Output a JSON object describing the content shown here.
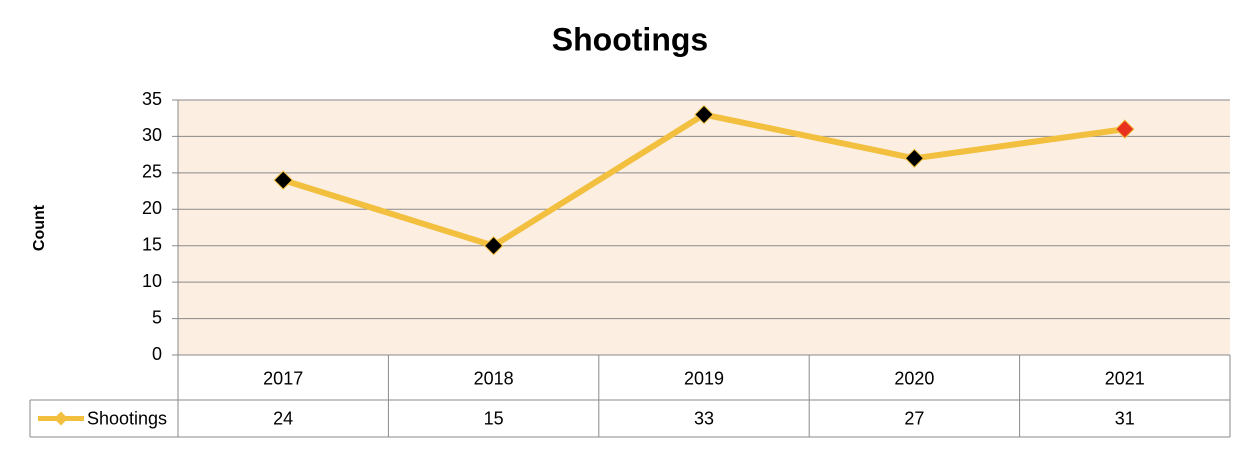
{
  "chart_data": {
    "type": "line",
    "title": "Shootings",
    "y_label": "Count",
    "categories": [
      "2017",
      "2018",
      "2019",
      "2020",
      "2021"
    ],
    "series": [
      {
        "name": "Shootings",
        "color": "#f2bf3f",
        "values": [
          24,
          15,
          33,
          27,
          31
        ],
        "marker_colors": [
          "#000000",
          "#000000",
          "#000000",
          "#000000",
          "#e8321e"
        ]
      }
    ],
    "ylim": [
      0,
      35
    ],
    "yticks": [
      0,
      5,
      10,
      15,
      20,
      25,
      30,
      35
    ],
    "grid": true,
    "plot_background": "#fcefe2",
    "data_table": true
  }
}
